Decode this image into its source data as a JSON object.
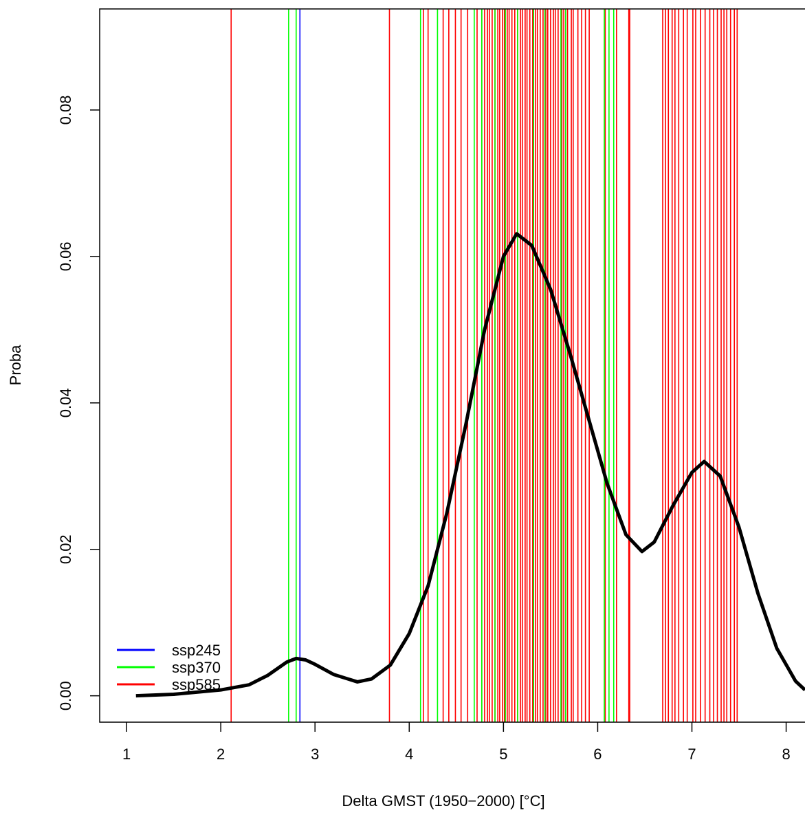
{
  "chart_data": {
    "type": "density",
    "xlabel": "Delta GMST (1950−2000) [°C]",
    "ylabel": "Proba",
    "xlim": [
      0.715,
      8.2
    ],
    "ylim": [
      -0.0036,
      0.0938
    ],
    "xticks": [
      1,
      2,
      3,
      4,
      5,
      6,
      7,
      8
    ],
    "yticks": [
      {
        "value": 0,
        "label": "0.00"
      },
      0.02,
      0.04,
      0.06,
      0.08
    ],
    "legend": "bottomleft",
    "density": {
      "color": "#000000",
      "x": [
        1.1,
        1.5,
        2.0,
        2.3,
        2.5,
        2.7,
        2.8,
        2.9,
        3.0,
        3.2,
        3.45,
        3.6,
        3.8,
        4.0,
        4.2,
        4.4,
        4.6,
        4.8,
        5.0,
        5.14,
        5.3,
        5.5,
        5.7,
        5.9,
        6.1,
        6.3,
        6.47,
        6.6,
        6.8,
        7.0,
        7.13,
        7.3,
        7.5,
        7.7,
        7.9,
        8.1,
        8.2
      ],
      "values": [
        0.0,
        0.0002,
        0.0008,
        0.0015,
        0.0028,
        0.0046,
        0.0051,
        0.0049,
        0.0043,
        0.0029,
        0.0019,
        0.0023,
        0.0042,
        0.0085,
        0.015,
        0.025,
        0.037,
        0.05,
        0.06,
        0.0631,
        0.0615,
        0.0555,
        0.047,
        0.038,
        0.029,
        0.022,
        0.0197,
        0.021,
        0.026,
        0.0305,
        0.032,
        0.03,
        0.023,
        0.014,
        0.0065,
        0.002,
        0.0008
      ]
    },
    "series": [
      {
        "name": "ssp245",
        "color": "#0000ff",
        "values": [
          2.84
        ]
      },
      {
        "name": "ssp370",
        "color": "#00ff00",
        "values": [
          2.72,
          2.8,
          4.12,
          4.3,
          4.69,
          4.77,
          4.91,
          5.02,
          5.15,
          5.32,
          5.44,
          5.61,
          5.66,
          6.07,
          6.12,
          6.17
        ]
      },
      {
        "name": "ssp585",
        "color": "#ff0000",
        "values": [
          2.11,
          3.79,
          4.15,
          4.2,
          4.36,
          4.42,
          4.49,
          4.55,
          4.62,
          4.72,
          4.77,
          4.8,
          4.83,
          4.85,
          4.88,
          4.91,
          4.94,
          4.96,
          4.99,
          5.01,
          5.04,
          5.06,
          5.09,
          5.12,
          5.15,
          5.18,
          5.2,
          5.23,
          5.25,
          5.28,
          5.31,
          5.34,
          5.36,
          5.39,
          5.42,
          5.45,
          5.47,
          5.5,
          5.53,
          5.55,
          5.58,
          5.62,
          5.64,
          5.68,
          5.72,
          5.74,
          5.79,
          5.83,
          5.87,
          5.91,
          6.08,
          6.2,
          6.33,
          6.34,
          6.69,
          6.72,
          6.75,
          6.79,
          6.82,
          6.86,
          6.91,
          6.95,
          7.01,
          7.04,
          7.09,
          7.14,
          7.19,
          7.23,
          7.27,
          7.31,
          7.34,
          7.37,
          7.41,
          7.45,
          7.48
        ]
      }
    ]
  }
}
